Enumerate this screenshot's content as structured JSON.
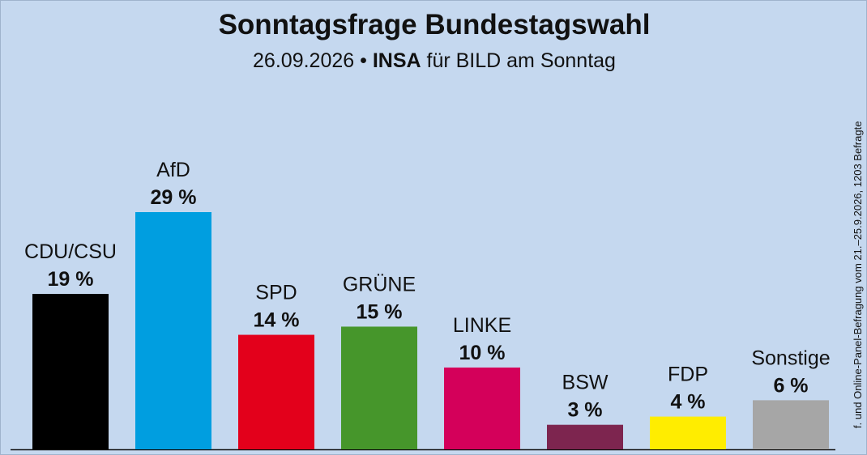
{
  "chart_data": {
    "type": "bar",
    "title": "Sonntagsfrage Bundestagswahl",
    "subtitle_date": "26.09.2026 •",
    "subtitle_institute": "INSA",
    "subtitle_client": "für BILD am Sonntag",
    "side_note": "f. und Online-Panel-Befragung vom 21.–25.9.2026, 1203 Befragte",
    "categories": [
      "CDU/CSU",
      "AfD",
      "SPD",
      "GRÜNE",
      "LINKE",
      "BSW",
      "FDP",
      "Sonstige"
    ],
    "values": [
      19,
      29,
      14,
      15,
      10,
      3,
      4,
      6
    ],
    "value_labels": [
      "19 %",
      "29 %",
      "14 %",
      "15 %",
      "10 %",
      "3 %",
      "4 %",
      "6 %"
    ],
    "colors": [
      "#000000",
      "#009ee0",
      "#e3001b",
      "#46962b",
      "#d4005a",
      "#7d254f",
      "#ffed00",
      "#a6a6a6"
    ],
    "ylim": [
      0,
      29
    ],
    "grid": false,
    "legend": "none"
  }
}
